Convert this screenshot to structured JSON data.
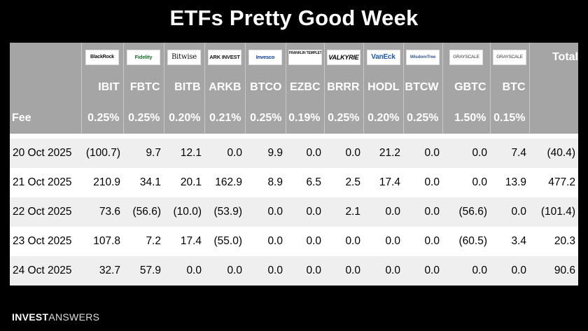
{
  "title": "ETFs Pretty Good Week",
  "logos": [
    "BlackRock",
    "Fidelity",
    "Bitwise",
    "ARK INVEST",
    "Invesco",
    "FRANKLIN TEMPLETON",
    "VALKYRIE",
    "VanEck",
    "WisdomTree",
    "GRAYSCALE",
    "GRAYSCALE"
  ],
  "total_label": "Total",
  "tickers": [
    "IBIT",
    "FBTC",
    "BITB",
    "ARKB",
    "BTCO",
    "EZBC",
    "BRRR",
    "HODL",
    "BTCW",
    "GBTC",
    "BTC"
  ],
  "fee_label": "Fee",
  "fees": [
    "0.25%",
    "0.25%",
    "0.20%",
    "0.21%",
    "0.25%",
    "0.19%",
    "0.25%",
    "0.20%",
    "0.25%",
    "1.50%",
    "0.15%"
  ],
  "rows": [
    {
      "date": "20 Oct 2025",
      "values": [
        "(100.7)",
        "9.7",
        "12.1",
        "0.0",
        "9.9",
        "0.0",
        "0.0",
        "21.2",
        "0.0",
        "0.0",
        "7.4"
      ],
      "total": "(40.4)"
    },
    {
      "date": "21 Oct 2025",
      "values": [
        "210.9",
        "34.1",
        "20.1",
        "162.9",
        "8.9",
        "6.5",
        "2.5",
        "17.4",
        "0.0",
        "0.0",
        "13.9"
      ],
      "total": "477.2"
    },
    {
      "date": "22 Oct 2025",
      "values": [
        "73.6",
        "(56.6)",
        "(10.0)",
        "(53.9)",
        "0.0",
        "0.0",
        "2.1",
        "0.0",
        "0.0",
        "(56.6)",
        "0.0"
      ],
      "total": "(101.4)"
    },
    {
      "date": "23 Oct 2025",
      "values": [
        "107.8",
        "7.2",
        "17.4",
        "(55.0)",
        "0.0",
        "0.0",
        "0.0",
        "0.0",
        "0.0",
        "(60.5)",
        "3.4"
      ],
      "total": "20.3"
    },
    {
      "date": "24 Oct 2025",
      "values": [
        "32.7",
        "57.9",
        "0.0",
        "0.0",
        "0.0",
        "0.0",
        "0.0",
        "0.0",
        "0.0",
        "0.0",
        "0.0"
      ],
      "total": "90.6"
    }
  ],
  "brand": {
    "bold": "INVEST",
    "light": "ANSWERS"
  },
  "colors": {
    "header_bg": "#a5a5a5",
    "negative": "#d32f2f",
    "row_shade": "#efefef"
  }
}
